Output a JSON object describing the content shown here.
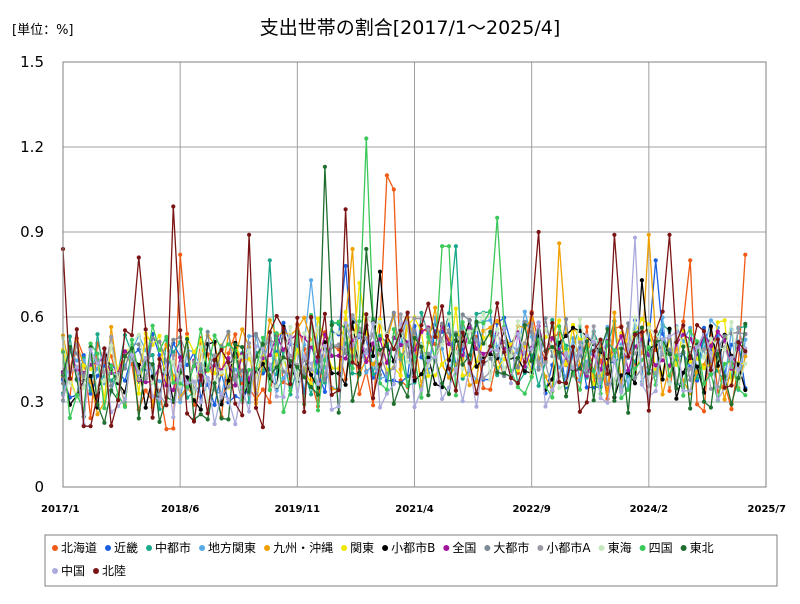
{
  "chart_data": {
    "type": "line",
    "title": "支出世帯の割合[2017/1～2025/4]",
    "unit_label": "[単位：%]",
    "x_start": "2017/1",
    "x_end": "2025/4",
    "x_axis_end": "2025/7",
    "x_ticks": [
      "2017/1",
      "2018/6",
      "2019/11",
      "2021/4",
      "2022/9",
      "2024/2",
      "2025/7"
    ],
    "ylim": [
      0,
      1.5
    ],
    "y_ticks": [
      "0",
      "0.3",
      "0.6",
      "0.9",
      "1.2",
      "1.5"
    ],
    "y_tick_values": [
      0,
      0.3,
      0.6,
      0.9,
      1.2,
      1.5
    ],
    "grid": true,
    "legend_position": "bottom",
    "series": [
      {
        "name": "北海道",
        "color": "#f05a14",
        "seed": 1,
        "base": 0.4,
        "amp": 0.17,
        "peaks": [
          [
            47,
            1.1
          ],
          [
            48,
            1.05
          ],
          [
            17,
            0.82
          ],
          [
            91,
            0.8
          ],
          [
            99,
            0.82
          ]
        ]
      },
      {
        "name": "近畿",
        "color": "#1a5fe0",
        "seed": 2,
        "base": 0.44,
        "amp": 0.13,
        "peaks": [
          [
            41,
            0.78
          ],
          [
            86,
            0.8
          ]
        ]
      },
      {
        "name": "中都市",
        "color": "#1aa88a",
        "seed": 3,
        "base": 0.44,
        "amp": 0.14,
        "peaks": [
          [
            30,
            0.8
          ],
          [
            57,
            0.85
          ]
        ]
      },
      {
        "name": "地方関東",
        "color": "#5aaae6",
        "seed": 4,
        "base": 0.45,
        "amp": 0.13,
        "peaks": [
          [
            36,
            0.73
          ]
        ]
      },
      {
        "name": "九州・沖縄",
        "color": "#f0a000",
        "seed": 5,
        "base": 0.44,
        "amp": 0.16,
        "peaks": [
          [
            42,
            0.84
          ],
          [
            85,
            0.89
          ],
          [
            72,
            0.86
          ]
        ]
      },
      {
        "name": "関東",
        "color": "#f0e600",
        "seed": 6,
        "base": 0.46,
        "amp": 0.12,
        "peaks": [
          [
            43,
            0.72
          ]
        ]
      },
      {
        "name": "小都市B",
        "color": "#000000",
        "seed": 7,
        "base": 0.42,
        "amp": 0.13,
        "peaks": [
          [
            46,
            0.76
          ],
          [
            84,
            0.73
          ]
        ]
      },
      {
        "name": "全国",
        "color": "#a0149b",
        "seed": 8,
        "base": 0.45,
        "amp": 0.08,
        "peaks": []
      },
      {
        "name": "大都市",
        "color": "#7e8a96",
        "seed": 9,
        "base": 0.46,
        "amp": 0.12,
        "peaks": []
      },
      {
        "name": "小都市A",
        "color": "#9a9aa6",
        "seed": 10,
        "base": 0.44,
        "amp": 0.12,
        "peaks": []
      },
      {
        "name": "東海",
        "color": "#c8e8c0",
        "seed": 11,
        "base": 0.45,
        "amp": 0.13,
        "peaks": []
      },
      {
        "name": "四国",
        "color": "#3cc85a",
        "seed": 12,
        "base": 0.42,
        "amp": 0.18,
        "peaks": [
          [
            44,
            1.23
          ],
          [
            55,
            0.85
          ],
          [
            56,
            0.85
          ],
          [
            63,
            0.95
          ]
        ]
      },
      {
        "name": "東北",
        "color": "#1e6e2e",
        "seed": 13,
        "base": 0.4,
        "amp": 0.16,
        "peaks": [
          [
            38,
            1.13
          ],
          [
            44,
            0.84
          ]
        ]
      },
      {
        "name": "中国",
        "color": "#aaaadc",
        "seed": 14,
        "base": 0.38,
        "amp": 0.15,
        "peaks": [
          [
            83,
            0.88
          ]
        ]
      },
      {
        "name": "北陸",
        "color": "#7a1414",
        "seed": 15,
        "base": 0.42,
        "amp": 0.18,
        "peaks": [
          [
            0,
            0.84
          ],
          [
            11,
            0.81
          ],
          [
            16,
            0.99
          ],
          [
            27,
            0.89
          ],
          [
            41,
            0.98
          ],
          [
            69,
            0.9
          ],
          [
            88,
            0.89
          ],
          [
            80,
            0.89
          ]
        ]
      }
    ]
  }
}
